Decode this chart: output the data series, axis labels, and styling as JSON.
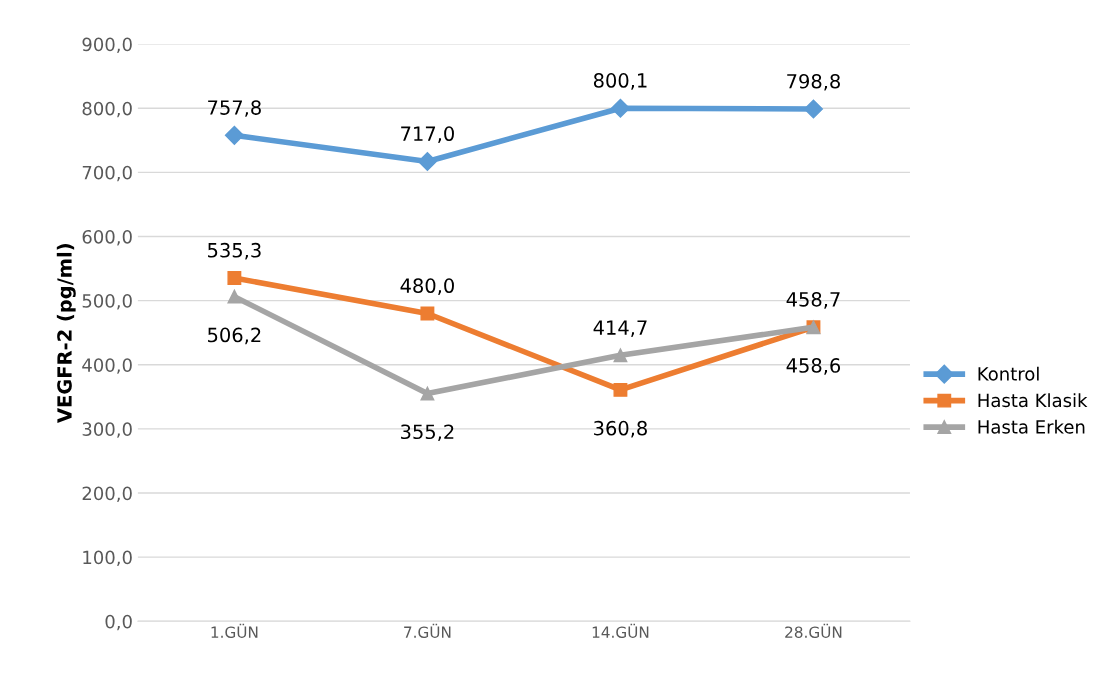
{
  "chart_data": {
    "type": "line",
    "ylabel": "VEGFR-2 (pg/ml)",
    "categories": [
      "1.GÜN",
      "7.GÜN",
      "14.GÜN",
      "28.GÜN"
    ],
    "series": [
      {
        "name": "Kontrol",
        "color": "#5b9bd5",
        "marker": "diamond",
        "values": [
          757.8,
          717.0,
          800.1,
          798.8
        ],
        "value_labels": [
          "757,8",
          "717,0",
          "800,1",
          "798,8"
        ]
      },
      {
        "name": "Hasta Klasik",
        "color": "#ed7d31",
        "marker": "square",
        "values": [
          535.3,
          480.0,
          360.8,
          458.7
        ],
        "value_labels": [
          "535,3",
          "480,0",
          "360,8",
          "458,7"
        ]
      },
      {
        "name": "Hasta Erken",
        "color": "#a5a5a5",
        "marker": "triangle",
        "values": [
          506.2,
          355.2,
          414.7,
          458.6
        ],
        "value_labels": [
          "506,2",
          "355,2",
          "414,7",
          "458,6"
        ]
      }
    ],
    "ylim": [
      0,
      900
    ],
    "yticks": [
      {
        "value": 0,
        "label": "0,0"
      },
      {
        "value": 100,
        "label": "100,0"
      },
      {
        "value": 200,
        "label": "200,0"
      },
      {
        "value": 300,
        "label": "300,0"
      },
      {
        "value": 400,
        "label": "400,0"
      },
      {
        "value": 500,
        "label": "500,0"
      },
      {
        "value": 600,
        "label": "600,0"
      },
      {
        "value": 700,
        "label": "700,0"
      },
      {
        "value": 800,
        "label": "800,0"
      },
      {
        "value": 900,
        "label": "900,0"
      }
    ],
    "grid": "y",
    "legend": "right"
  }
}
